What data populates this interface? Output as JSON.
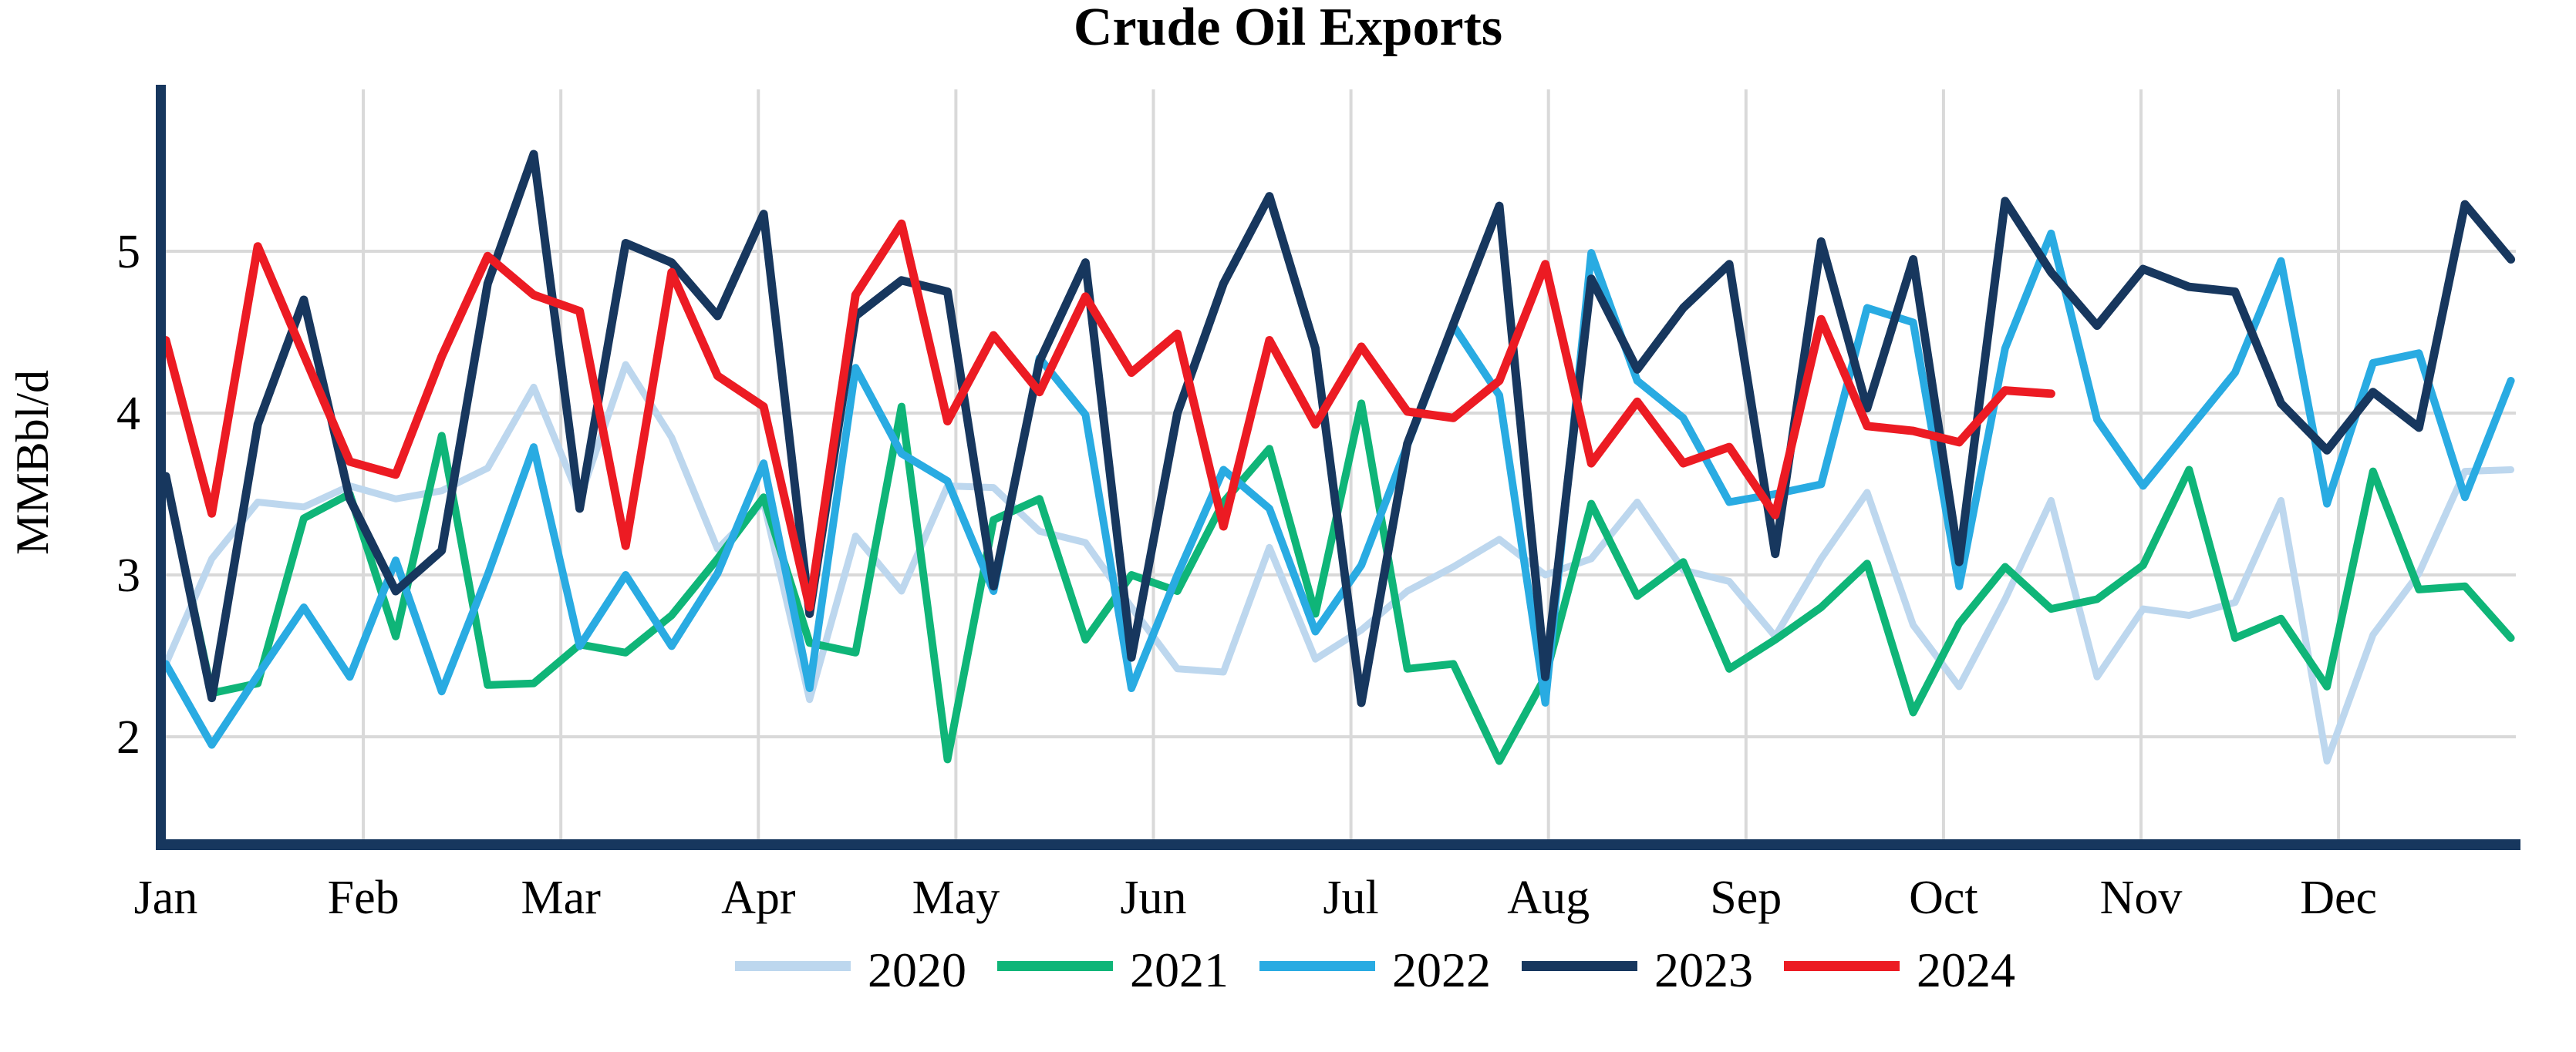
{
  "title": "Crude Oil Exports",
  "y_axis": {
    "label": "MMBbl/d",
    "ticks": [
      "2",
      "3",
      "4",
      "5"
    ]
  },
  "x_axis": {
    "months": [
      "Jan",
      "Feb",
      "Mar",
      "Apr",
      "May",
      "Jun",
      "Jul",
      "Aug",
      "Sep",
      "Oct",
      "Nov",
      "Dec"
    ]
  },
  "legend": {
    "items": [
      "2020",
      "2021",
      "2022",
      "2023",
      "2024"
    ]
  },
  "colors": {
    "axis": "#17375E",
    "gridline": "#D9D9D9",
    "series_2020": "#BDD7EE",
    "series_2021": "#0FB578",
    "series_2022": "#29ABE2",
    "series_2023": "#17375E",
    "series_2024": "#EC1B23"
  },
  "chart_data": {
    "type": "line",
    "title": "Crude Oil Exports",
    "xlabel": "",
    "ylabel": "MMBbl/d",
    "x_unit": "weekly points, Jan through Dec",
    "ylim": [
      1.4,
      6.0
    ],
    "yticks": [
      2,
      3,
      4,
      5
    ],
    "grid": true,
    "legend_position": "bottom",
    "months": [
      "Jan",
      "Feb",
      "Mar",
      "Apr",
      "May",
      "Jun",
      "Jul",
      "Aug",
      "Sep",
      "Oct",
      "Nov",
      "Dec"
    ],
    "series": [
      {
        "name": "2020",
        "color": "#BDD7EE",
        "stroke_width": 9,
        "values": [
          2.45,
          3.1,
          3.45,
          3.42,
          3.55,
          3.47,
          3.52,
          3.66,
          4.16,
          3.47,
          4.3,
          3.85,
          3.16,
          3.45,
          2.23,
          3.24,
          2.9,
          3.55,
          3.54,
          3.27,
          3.2,
          2.8,
          2.42,
          2.4,
          3.17,
          2.48,
          2.66,
          2.9,
          3.05,
          3.22,
          3.0,
          3.1,
          3.45,
          3.03,
          2.96,
          2.62,
          3.1,
          3.51,
          2.69,
          2.31,
          2.85,
          3.46,
          2.37,
          2.79,
          2.75,
          2.83,
          3.46,
          1.85,
          2.63,
          3.01,
          3.64,
          3.65
        ]
      },
      {
        "name": "2021",
        "color": "#0FB578",
        "stroke_width": 10,
        "values": [
          3.6,
          2.27,
          2.33,
          3.35,
          3.5,
          2.62,
          3.86,
          2.32,
          2.33,
          2.57,
          2.52,
          2.75,
          3.1,
          3.48,
          2.58,
          2.52,
          4.04,
          1.86,
          3.34,
          3.47,
          2.6,
          3.0,
          2.9,
          3.45,
          3.78,
          2.76,
          4.06,
          2.42,
          2.45,
          1.85,
          2.37,
          3.44,
          2.87,
          3.08,
          2.42,
          2.6,
          2.8,
          3.07,
          2.15,
          2.7,
          3.05,
          2.79,
          2.85,
          3.06,
          3.65,
          2.61,
          2.73,
          2.31,
          3.64,
          2.91,
          2.93,
          2.61
        ]
      },
      {
        "name": "2022",
        "color": "#29ABE2",
        "stroke_width": 10,
        "values": [
          2.45,
          1.95,
          2.38,
          2.8,
          2.37,
          3.09,
          2.28,
          3.0,
          3.79,
          2.56,
          3.0,
          2.56,
          3.01,
          3.69,
          2.3,
          4.28,
          3.75,
          3.58,
          2.9,
          4.34,
          3.99,
          2.3,
          3.0,
          3.65,
          3.41,
          2.65,
          3.06,
          3.8,
          4.54,
          4.11,
          2.21,
          4.99,
          4.2,
          3.97,
          3.45,
          3.5,
          3.56,
          4.65,
          4.56,
          2.93,
          4.4,
          5.11,
          3.96,
          3.55,
          3.9,
          4.25,
          4.94,
          3.44,
          4.31,
          4.37,
          3.48,
          4.2
        ]
      },
      {
        "name": "2023",
        "color": "#17375E",
        "stroke_width": 11,
        "values": [
          3.61,
          2.24,
          3.93,
          4.7,
          3.47,
          2.9,
          3.15,
          4.8,
          5.6,
          3.41,
          5.05,
          4.93,
          4.6,
          5.23,
          2.76,
          4.6,
          4.82,
          4.75,
          2.93,
          4.32,
          4.93,
          2.49,
          4.0,
          4.8,
          5.34,
          4.4,
          2.21,
          3.81,
          4.55,
          5.28,
          2.37,
          4.83,
          4.27,
          4.65,
          4.92,
          3.13,
          5.06,
          4.03,
          4.95,
          3.08,
          5.31,
          4.87,
          4.54,
          4.89,
          4.78,
          4.75,
          4.06,
          3.77,
          4.13,
          3.91,
          5.29,
          4.95
        ]
      },
      {
        "name": "2024",
        "color": "#EC1B23",
        "stroke_width": 11,
        "values": [
          4.45,
          3.38,
          5.03,
          4.36,
          3.7,
          3.62,
          4.35,
          4.97,
          4.73,
          4.63,
          3.18,
          4.87,
          4.23,
          4.04,
          2.8,
          4.73,
          5.17,
          3.95,
          4.48,
          4.13,
          4.72,
          4.25,
          4.49,
          3.3,
          4.45,
          3.93,
          4.41,
          4.01,
          3.97,
          4.2,
          4.92,
          3.69,
          4.07,
          3.69,
          3.79,
          3.37,
          4.58,
          3.92,
          3.89,
          3.82,
          4.14,
          4.12
        ]
      }
    ]
  }
}
